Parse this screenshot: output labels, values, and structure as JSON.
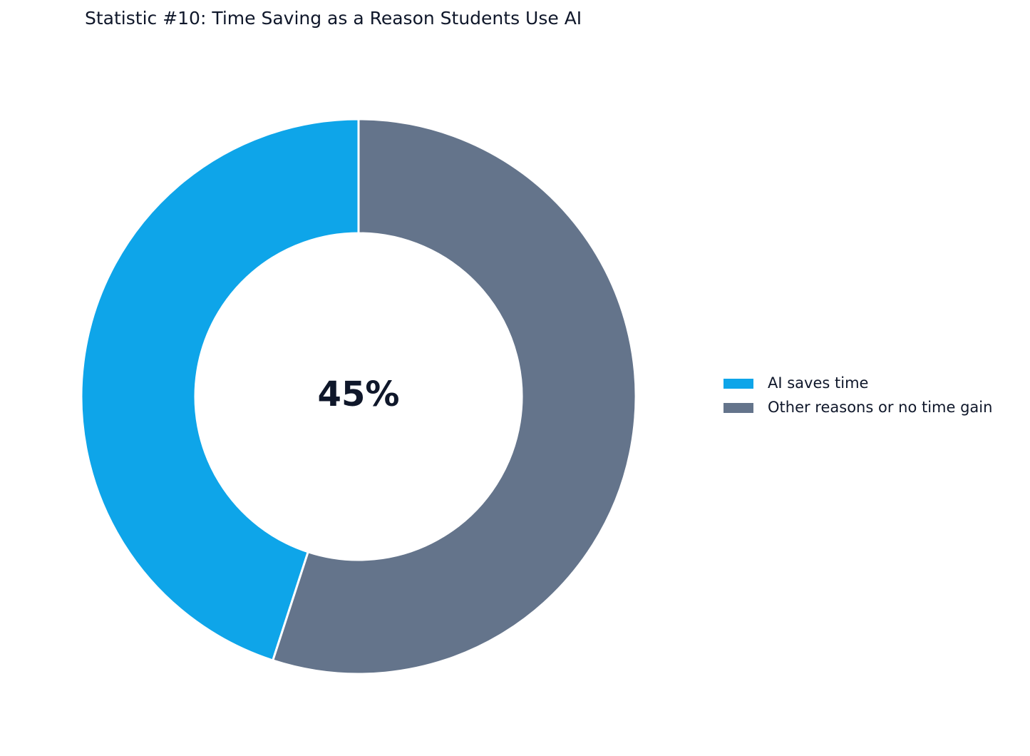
{
  "chart_data": {
    "type": "donut",
    "title": "Statistic #10: Time Saving as a Reason Students Use AI",
    "categories": [
      "AI saves time",
      "Other reasons or no time gain"
    ],
    "values": [
      45,
      55
    ],
    "colors": [
      "#0ea5e9",
      "#64748b"
    ],
    "center_label": "45%",
    "legend": "right"
  }
}
